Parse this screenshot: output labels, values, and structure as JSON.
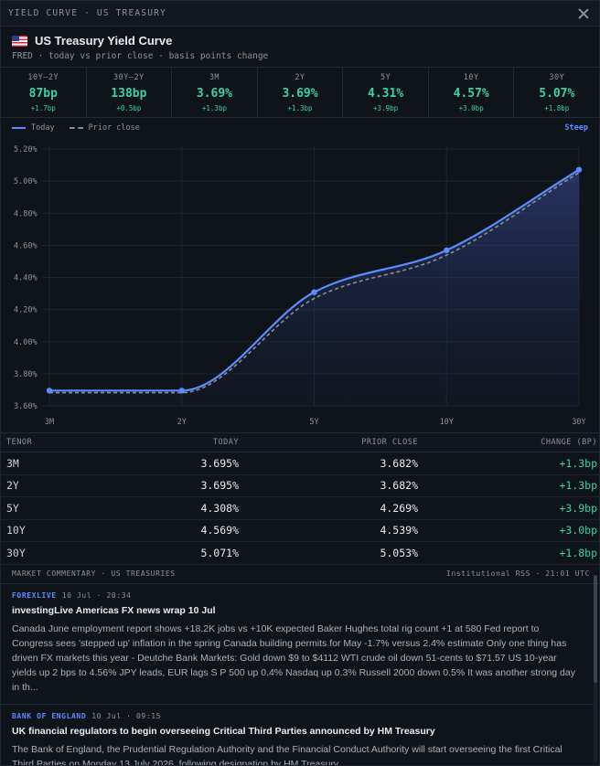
{
  "window": {
    "title": "YIELD CURVE · US TREASURY"
  },
  "header": {
    "title": "US Treasury Yield Curve",
    "subtitle": "FRED · today vs prior close · basis points change"
  },
  "metrics": [
    {
      "label": "10Y–2Y",
      "value": "87bp",
      "change": "+1.7bp"
    },
    {
      "label": "30Y–2Y",
      "value": "138bp",
      "change": "+0.5bp"
    },
    {
      "label": "3M",
      "value": "3.69%",
      "change": "+1.3bp"
    },
    {
      "label": "2Y",
      "value": "3.69%",
      "change": "+1.3bp"
    },
    {
      "label": "5Y",
      "value": "4.31%",
      "change": "+3.9bp"
    },
    {
      "label": "10Y",
      "value": "4.57%",
      "change": "+3.0bp"
    },
    {
      "label": "30Y",
      "value": "5.07%",
      "change": "+1.8bp"
    }
  ],
  "legend": {
    "today": "Today",
    "prior": "Prior close",
    "shape": "Steep"
  },
  "chart_data": {
    "type": "line",
    "categories": [
      "3M",
      "2Y",
      "5Y",
      "10Y",
      "30Y"
    ],
    "series": [
      {
        "name": "Today",
        "values": [
          3.695,
          3.695,
          4.308,
          4.569,
          5.071
        ],
        "color": "#5b8cff"
      },
      {
        "name": "Prior close",
        "values": [
          3.682,
          3.682,
          4.269,
          4.539,
          5.053
        ],
        "color": "#8a8f98"
      }
    ],
    "ylim": [
      3.6,
      5.2
    ],
    "yticks": [
      "3.60%",
      "3.80%",
      "4.00%",
      "4.20%",
      "4.40%",
      "4.60%",
      "4.80%",
      "5.00%",
      "5.20%"
    ],
    "grid": true
  },
  "table": {
    "headers": [
      "TENOR",
      "TODAY",
      "PRIOR CLOSE",
      "CHANGE (BP)"
    ],
    "rows": [
      [
        "3M",
        "3.695%",
        "3.682%",
        "+1.3bp"
      ],
      [
        "2Y",
        "3.695%",
        "3.682%",
        "+1.3bp"
      ],
      [
        "5Y",
        "4.308%",
        "4.269%",
        "+3.9bp"
      ],
      [
        "10Y",
        "4.569%",
        "4.539%",
        "+3.0bp"
      ],
      [
        "30Y",
        "5.071%",
        "5.053%",
        "+1.8bp"
      ]
    ]
  },
  "news": {
    "title": "MARKET COMMENTARY · US TREASURIES",
    "meta": "Institutional RSS · 21:01 UTC",
    "items": [
      {
        "source": "FOREXLIVE",
        "time": "10 Jul · 20:34",
        "headline": "investingLive Americas FX news wrap 10 Jul",
        "body": "Canada June employment report shows +18.2K jobs vs +10K expected Baker Hughes total rig count +1 at 580 Fed report to Congress sees 'stepped up' inflation in the spring Canada building permits for May -1.7% versus 2.4% estimate Only one thing has driven FX markets this year - Deutche Bank Markets: Gold down $9 to $4112 WTI crude oil down 51-cents to $71.57 US 10-year yields up 2 bps to 4.56% JPY leads, EUR lags S P 500 up 0.4% Nasdaq up 0.3% Russell 2000 down 0.5% It was another strong day in th..."
      },
      {
        "source": "BANK OF ENGLAND",
        "time": "10 Jul · 09:15",
        "headline": "UK financial regulators to begin overseeing Critical Third Parties announced by HM Treasury",
        "body": "The Bank of England, the Prudential Regulation Authority and the Financial Conduct Authority will start overseeing the first Critical Third Parties on Monday 13 July 2026, following designation by HM Treasury."
      }
    ]
  }
}
